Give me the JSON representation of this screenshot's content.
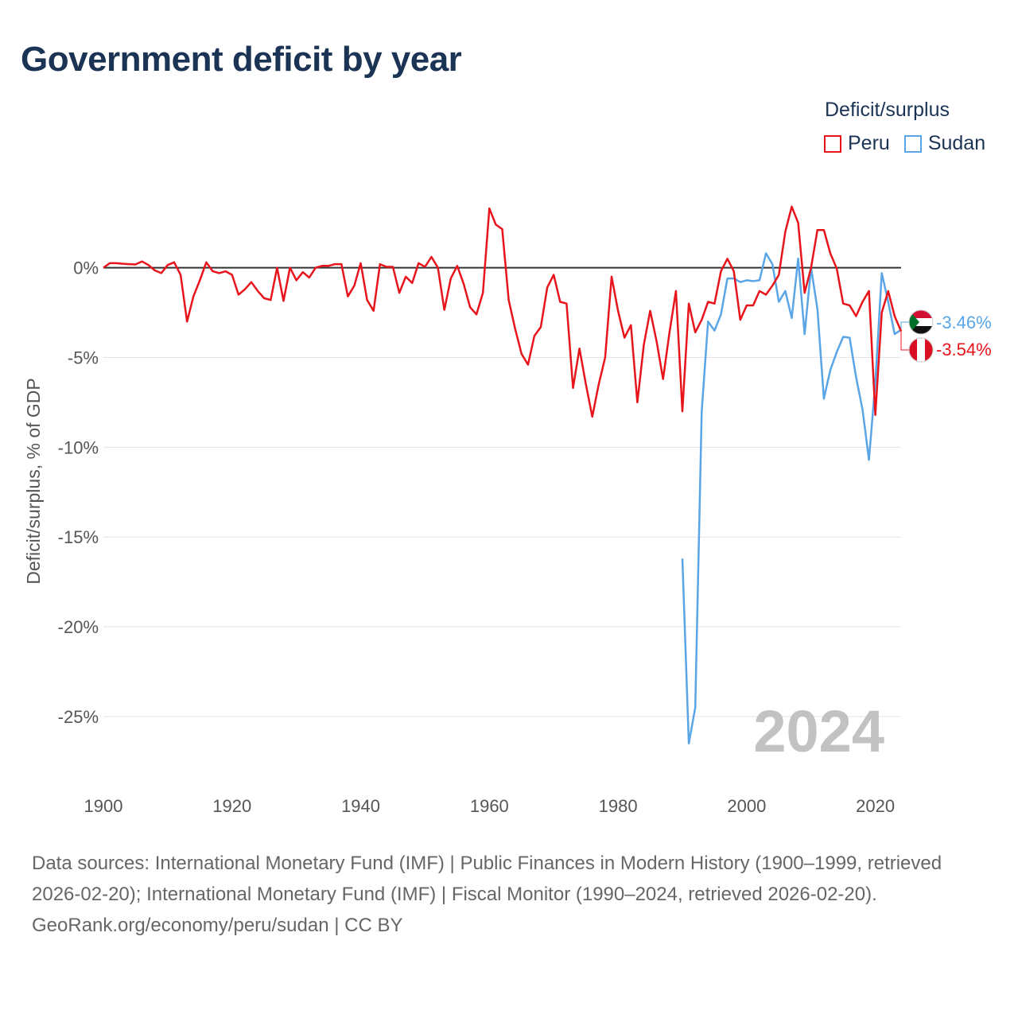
{
  "title": "Government deficit by year",
  "legend": {
    "title": "Deficit/surplus",
    "items": [
      {
        "name": "Peru",
        "color": "#e8141c"
      },
      {
        "name": "Sudan",
        "color": "#5aa5e6"
      }
    ]
  },
  "year_watermark": "2024",
  "footer": {
    "sources": "Data sources: International Monetary Fund (IMF) | Public Finances in Modern History (1900–1999, retrieved 2026-02-20); International Monetary Fund (IMF) | Fiscal Monitor (1990–2024, retrieved 2026-02-20).",
    "credit": "GeoRank.org/economy/peru/sudan | CC BY"
  },
  "chart_data": {
    "type": "line",
    "title": "Government deficit by year",
    "xlabel": "",
    "ylabel": "Deficit/surplus, % of GDP",
    "xlim": [
      1900,
      2024
    ],
    "ylim": [
      -28.5,
      4.5
    ],
    "x_ticks": [
      1900,
      1920,
      1940,
      1960,
      1980,
      2000,
      2020
    ],
    "y_ticks": [
      0,
      -5,
      -10,
      -15,
      -20,
      -25
    ],
    "y_tick_labels": [
      "0%",
      "-5%",
      "-10%",
      "-15%",
      "-20%",
      "-25%"
    ],
    "zero_line": true,
    "legend_position": "top-right",
    "series": [
      {
        "name": "Peru",
        "color": "#e8141c",
        "end_label": "-3.54%",
        "x": [
          1900,
          1901,
          1902,
          1903,
          1904,
          1905,
          1906,
          1907,
          1908,
          1909,
          1910,
          1911,
          1912,
          1913,
          1914,
          1915,
          1916,
          1917,
          1918,
          1919,
          1920,
          1921,
          1922,
          1923,
          1924,
          1925,
          1926,
          1927,
          1928,
          1929,
          1930,
          1931,
          1932,
          1933,
          1934,
          1935,
          1936,
          1937,
          1938,
          1939,
          1940,
          1941,
          1942,
          1943,
          1944,
          1945,
          1946,
          1947,
          1948,
          1949,
          1950,
          1951,
          1952,
          1953,
          1954,
          1955,
          1956,
          1957,
          1958,
          1959,
          1960,
          1961,
          1962,
          1963,
          1964,
          1965,
          1966,
          1967,
          1968,
          1969,
          1970,
          1971,
          1972,
          1973,
          1974,
          1975,
          1976,
          1977,
          1978,
          1979,
          1980,
          1981,
          1982,
          1983,
          1984,
          1985,
          1986,
          1987,
          1988,
          1989,
          1990,
          1991,
          1992,
          1993,
          1994,
          1995,
          1996,
          1997,
          1998,
          1999,
          2000,
          2001,
          2002,
          2003,
          2004,
          2005,
          2006,
          2007,
          2008,
          2009,
          2010,
          2011,
          2012,
          2013,
          2014,
          2015,
          2016,
          2017,
          2018,
          2019,
          2020,
          2021,
          2022,
          2023,
          2024
        ],
        "values": [
          0.0,
          0.25,
          0.25,
          0.22,
          0.2,
          0.18,
          0.35,
          0.15,
          -0.15,
          -0.3,
          0.15,
          0.3,
          -0.4,
          -3.0,
          -1.6,
          -0.7,
          0.3,
          -0.2,
          -0.3,
          -0.2,
          -0.4,
          -1.5,
          -1.2,
          -0.8,
          -1.3,
          -1.7,
          -1.8,
          0.0,
          -1.85,
          0.0,
          -0.7,
          -0.25,
          -0.55,
          0.0,
          0.1,
          0.1,
          0.2,
          0.2,
          -1.6,
          -1.0,
          0.25,
          -1.8,
          -2.4,
          0.2,
          0.05,
          0.05,
          -1.4,
          -0.5,
          -0.85,
          0.25,
          0.05,
          0.6,
          0.0,
          -2.35,
          -0.6,
          0.1,
          -0.9,
          -2.2,
          -2.6,
          -1.4,
          3.3,
          2.4,
          2.15,
          -1.8,
          -3.4,
          -4.8,
          -5.4,
          -3.8,
          -3.3,
          -1.1,
          -0.4,
          -1.9,
          -2.0,
          -6.7,
          -4.5,
          -6.5,
          -8.3,
          -6.5,
          -5.0,
          -0.5,
          -2.4,
          -3.9,
          -3.2,
          -7.5,
          -4.3,
          -2.4,
          -4.1,
          -6.2,
          -3.6,
          -1.3,
          -8.0,
          -2.0,
          -3.6,
          -2.9,
          -1.9,
          -2.0,
          -0.2,
          0.5,
          -0.2,
          -2.9,
          -2.1,
          -2.1,
          -1.3,
          -1.5,
          -1.0,
          -0.4,
          2.0,
          3.4,
          2.5,
          -1.4,
          0.0,
          2.1,
          2.1,
          0.8,
          -0.05,
          -2.0,
          -2.1,
          -2.7,
          -1.9,
          -1.3,
          -8.2,
          -2.5,
          -1.3,
          -2.7,
          -3.54
        ]
      },
      {
        "name": "Sudan",
        "color": "#5aa5e6",
        "end_label": "-3.46%",
        "x": [
          1990,
          1991,
          1992,
          1993,
          1994,
          1995,
          1996,
          1997,
          1998,
          1999,
          2000,
          2001,
          2002,
          2003,
          2004,
          2005,
          2006,
          2007,
          2008,
          2009,
          2010,
          2011,
          2012,
          2013,
          2014,
          2015,
          2016,
          2017,
          2018,
          2019,
          2020,
          2021,
          2022,
          2023,
          2024
        ],
        "values": [
          -16.2,
          -26.5,
          -24.5,
          -8.0,
          -3.0,
          -3.5,
          -2.6,
          -0.6,
          -0.6,
          -0.8,
          -0.7,
          -0.75,
          -0.7,
          0.8,
          0.2,
          -1.9,
          -1.3,
          -2.8,
          0.5,
          -3.7,
          0.0,
          -2.3,
          -7.3,
          -5.7,
          -4.7,
          -3.85,
          -3.9,
          -6.1,
          -7.9,
          -10.7,
          -6.4,
          -0.3,
          -1.9,
          -3.7,
          -3.46
        ]
      }
    ]
  }
}
